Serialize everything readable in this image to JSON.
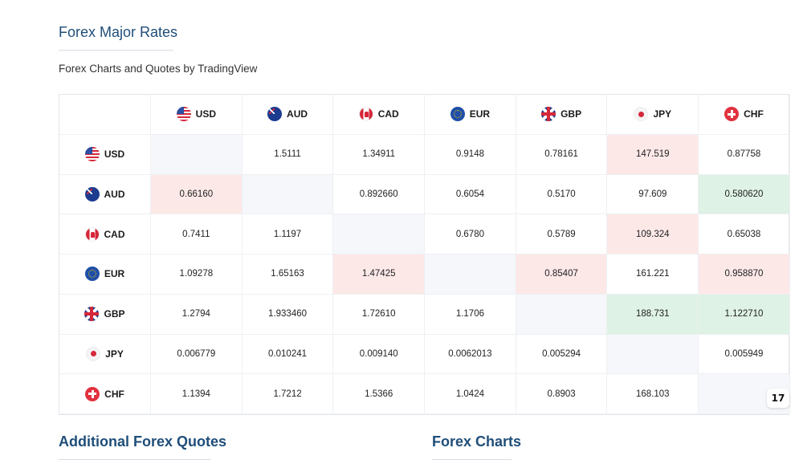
{
  "header": {
    "title": "Forex Major Rates",
    "subtitle": "Forex Charts and Quotes by TradingView"
  },
  "currencies": [
    {
      "code": "USD",
      "icon": "us-flag-icon"
    },
    {
      "code": "AUD",
      "icon": "australia-flag-icon"
    },
    {
      "code": "CAD",
      "icon": "canada-flag-icon"
    },
    {
      "code": "EUR",
      "icon": "eu-flag-icon"
    },
    {
      "code": "GBP",
      "icon": "uk-flag-icon"
    },
    {
      "code": "JPY",
      "icon": "japan-flag-icon"
    },
    {
      "code": "CHF",
      "icon": "switzerland-flag-icon"
    }
  ],
  "rows": [
    {
      "base": "USD",
      "cells": [
        {
          "v": "",
          "s": "empty"
        },
        {
          "v": "1.5111",
          "s": ""
        },
        {
          "v": "1.34911",
          "s": ""
        },
        {
          "v": "0.9148",
          "s": ""
        },
        {
          "v": "0.78161",
          "s": ""
        },
        {
          "v": "147.519",
          "s": "down"
        },
        {
          "v": "0.87758",
          "s": ""
        }
      ]
    },
    {
      "base": "AUD",
      "cells": [
        {
          "v": "0.66160",
          "s": "down"
        },
        {
          "v": "",
          "s": "empty"
        },
        {
          "v": "0.892660",
          "s": ""
        },
        {
          "v": "0.6054",
          "s": ""
        },
        {
          "v": "0.5170",
          "s": ""
        },
        {
          "v": "97.609",
          "s": ""
        },
        {
          "v": "0.580620",
          "s": "up"
        }
      ]
    },
    {
      "base": "CAD",
      "cells": [
        {
          "v": "0.7411",
          "s": ""
        },
        {
          "v": "1.1197",
          "s": ""
        },
        {
          "v": "",
          "s": "empty"
        },
        {
          "v": "0.6780",
          "s": ""
        },
        {
          "v": "0.5789",
          "s": ""
        },
        {
          "v": "109.324",
          "s": "down"
        },
        {
          "v": "0.65038",
          "s": ""
        }
      ]
    },
    {
      "base": "EUR",
      "cells": [
        {
          "v": "1.09278",
          "s": ""
        },
        {
          "v": "1.65163",
          "s": ""
        },
        {
          "v": "1.47425",
          "s": "down"
        },
        {
          "v": "",
          "s": "empty"
        },
        {
          "v": "0.85407",
          "s": "down"
        },
        {
          "v": "161.221",
          "s": ""
        },
        {
          "v": "0.958870",
          "s": "down"
        }
      ]
    },
    {
      "base": "GBP",
      "cells": [
        {
          "v": "1.2794",
          "s": ""
        },
        {
          "v": "1.933460",
          "s": ""
        },
        {
          "v": "1.72610",
          "s": ""
        },
        {
          "v": "1.1706",
          "s": ""
        },
        {
          "v": "",
          "s": "empty"
        },
        {
          "v": "188.731",
          "s": "up"
        },
        {
          "v": "1.122710",
          "s": "up"
        }
      ]
    },
    {
      "base": "JPY",
      "cells": [
        {
          "v": "0.006779",
          "s": ""
        },
        {
          "v": "0.010241",
          "s": ""
        },
        {
          "v": "0.009140",
          "s": ""
        },
        {
          "v": "0.0062013",
          "s": ""
        },
        {
          "v": "0.005294",
          "s": ""
        },
        {
          "v": "",
          "s": "empty"
        },
        {
          "v": "0.005949",
          "s": ""
        }
      ]
    },
    {
      "base": "CHF",
      "cells": [
        {
          "v": "1.1394",
          "s": ""
        },
        {
          "v": "1.7212",
          "s": ""
        },
        {
          "v": "1.5366",
          "s": ""
        },
        {
          "v": "1.0424",
          "s": ""
        },
        {
          "v": "0.8903",
          "s": ""
        },
        {
          "v": "168.103",
          "s": ""
        },
        {
          "v": "",
          "s": "empty"
        }
      ]
    }
  ],
  "colors": {
    "title": "#1f4e79",
    "up": "#def2e5",
    "down": "#fde8e8",
    "empty": "#f6f7fa"
  },
  "widget": {
    "logo_icon": "tradingview-logo-icon",
    "logo_text": "17"
  },
  "sections": {
    "additional_quotes": "Additional Forex Quotes",
    "forex_charts": "Forex Charts"
  }
}
